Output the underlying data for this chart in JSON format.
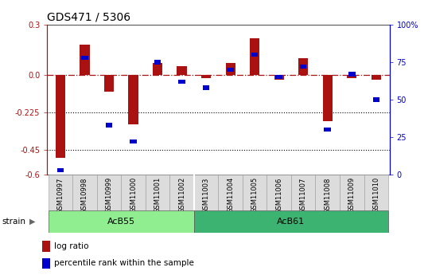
{
  "title": "GDS471 / 5306",
  "samples": [
    "GSM10997",
    "GSM10998",
    "GSM10999",
    "GSM11000",
    "GSM11001",
    "GSM11002",
    "GSM11003",
    "GSM11004",
    "GSM11005",
    "GSM11006",
    "GSM11007",
    "GSM11008",
    "GSM11009",
    "GSM11010"
  ],
  "log_ratio": [
    -0.5,
    0.18,
    -0.1,
    -0.3,
    0.07,
    0.05,
    -0.02,
    0.07,
    0.22,
    -0.03,
    0.1,
    -0.28,
    -0.02,
    -0.03
  ],
  "percentile_rank": [
    3,
    78,
    33,
    22,
    75,
    62,
    58,
    70,
    80,
    65,
    72,
    30,
    67,
    50
  ],
  "groups": [
    {
      "label": "AcB55",
      "start": 0,
      "end": 6,
      "color": "#90EE90"
    },
    {
      "label": "AcB61",
      "start": 6,
      "end": 14,
      "color": "#3CB371"
    }
  ],
  "ylim_left": [
    -0.6,
    0.3
  ],
  "ylim_right": [
    0,
    100
  ],
  "yticks_left": [
    0.3,
    0.0,
    -0.225,
    -0.45,
    -0.6
  ],
  "yticks_right": [
    100,
    75,
    50,
    25,
    0
  ],
  "hline_zero": 0.0,
  "hline1": -0.225,
  "hline2": -0.45,
  "bar_color": "#AA1111",
  "square_color": "#0000CC",
  "background_color": "#ffffff",
  "strain_label": "strain",
  "legend_log_ratio": "log ratio",
  "legend_percentile": "percentile rank within the sample",
  "title_fontsize": 10,
  "tick_fontsize": 7,
  "label_fontsize": 6,
  "group_fontsize": 8
}
